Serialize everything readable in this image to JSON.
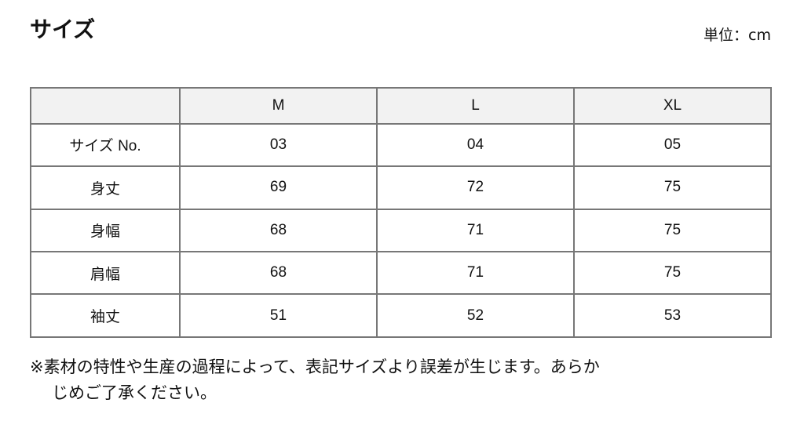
{
  "title": "サイズ",
  "unit": "単位：cm",
  "table": {
    "headers": [
      "",
      "M",
      "L",
      "XL"
    ],
    "rows": [
      [
        "サイズ No.",
        "03",
        "04",
        "05"
      ],
      [
        "身丈",
        "69",
        "72",
        "75"
      ],
      [
        "身幅",
        "68",
        "71",
        "75"
      ],
      [
        "肩幅",
        "68",
        "71",
        "75"
      ],
      [
        "袖丈",
        "51",
        "52",
        "53"
      ]
    ]
  },
  "note": {
    "line1": "※素材の特性や生産の過程によって、表記サイズより誤差が生じます。あらか",
    "line2": "じめご了承ください。"
  }
}
